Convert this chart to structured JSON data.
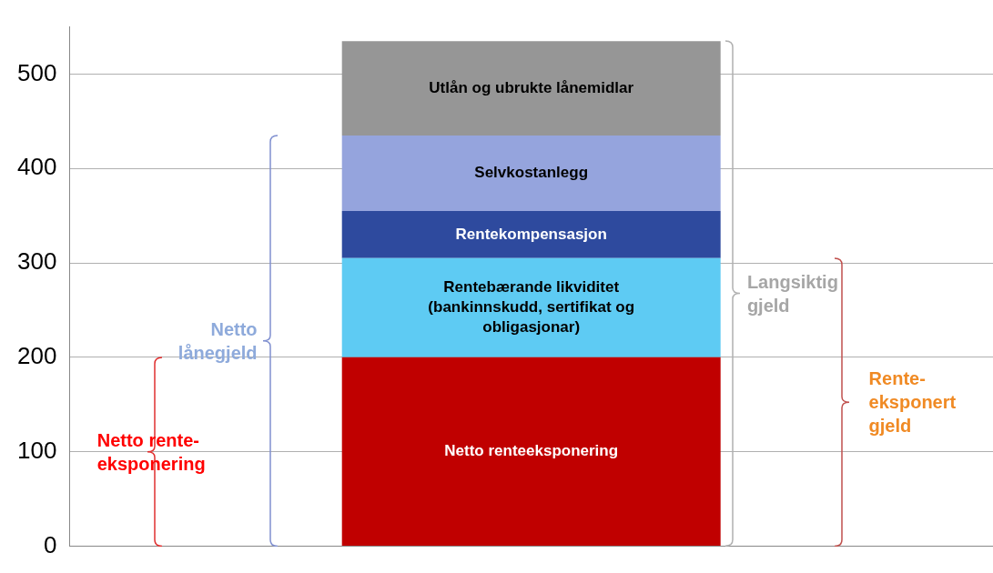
{
  "chart_data": {
    "type": "bar",
    "stacked": true,
    "categories": [
      null
    ],
    "series": [
      {
        "name": "Netto renteeksponering",
        "color": "#c00000",
        "values": [
          200
        ]
      },
      {
        "name": "Rentebærande likviditet (bankinnskudd, sertifikat og obligasjonar)",
        "color": "#5ecbf3",
        "values": [
          105
        ]
      },
      {
        "name": "Rentekompensasjon",
        "color": "#2e4a9e",
        "values": [
          50
        ]
      },
      {
        "name": "Selvkostanlegg",
        "color": "#95a4dd",
        "values": [
          80
        ]
      },
      {
        "name": "Utlån og ubrukte lånemidlar",
        "color": "#969696",
        "values": [
          100
        ]
      }
    ],
    "ylim": [
      0,
      550
    ],
    "yticks": [
      0,
      100,
      200,
      300,
      400,
      500
    ],
    "grid": "y",
    "legend": false,
    "annotations": [
      "Netto rente-eksponering",
      "Netto lånegjeld",
      "Langsiktig gjeld",
      "Rente-eksponert gjeld"
    ]
  }
}
